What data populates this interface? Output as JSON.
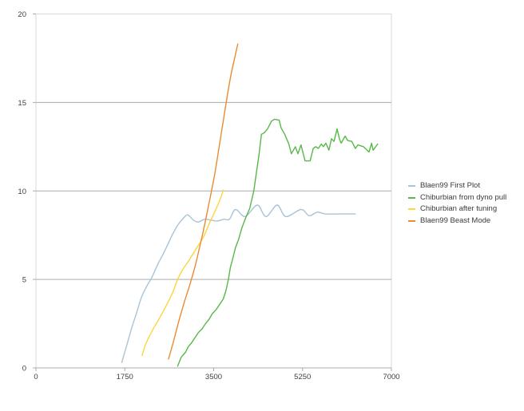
{
  "chart_data": {
    "type": "line",
    "title": "",
    "xlabel": "",
    "ylabel": "",
    "xlim": [
      0,
      7000
    ],
    "ylim": [
      0,
      20
    ],
    "x_ticks": [
      0,
      1750,
      3500,
      5250,
      7000
    ],
    "y_ticks": [
      0,
      5,
      10,
      15,
      20
    ],
    "grid": "horizontal gridlines at 5, 10, 15",
    "legend_position": "right",
    "series": [
      {
        "name": "Blaen99 First Plot",
        "color": "#aac3d6",
        "smooth": true,
        "points": [
          [
            1690,
            0.3
          ],
          [
            1780,
            1.2
          ],
          [
            1880,
            2.2
          ],
          [
            1980,
            3.1
          ],
          [
            2080,
            4.0
          ],
          [
            2180,
            4.6
          ],
          [
            2280,
            5.1
          ],
          [
            2390,
            5.8
          ],
          [
            2500,
            6.4
          ],
          [
            2600,
            7.0
          ],
          [
            2700,
            7.6
          ],
          [
            2800,
            8.1
          ],
          [
            2900,
            8.45
          ],
          [
            2990,
            8.65
          ],
          [
            3100,
            8.35
          ],
          [
            3200,
            8.25
          ],
          [
            3320,
            8.4
          ],
          [
            3450,
            8.35
          ],
          [
            3570,
            8.3
          ],
          [
            3700,
            8.4
          ],
          [
            3810,
            8.4
          ],
          [
            3930,
            8.95
          ],
          [
            4120,
            8.55
          ],
          [
            4360,
            9.2
          ],
          [
            4530,
            8.55
          ],
          [
            4750,
            9.2
          ],
          [
            4920,
            8.55
          ],
          [
            5220,
            8.95
          ],
          [
            5380,
            8.6
          ],
          [
            5540,
            8.8
          ],
          [
            5700,
            8.7
          ],
          [
            5950,
            8.7
          ],
          [
            6290,
            8.7
          ]
        ]
      },
      {
        "name": "Chiburbian from dyno pull",
        "color": "#58b848",
        "smooth": false,
        "points": [
          [
            2790,
            0.1
          ],
          [
            2860,
            0.6
          ],
          [
            2950,
            0.9
          ],
          [
            3000,
            1.2
          ],
          [
            3060,
            1.4
          ],
          [
            3130,
            1.7
          ],
          [
            3200,
            2.0
          ],
          [
            3270,
            2.2
          ],
          [
            3340,
            2.5
          ],
          [
            3410,
            2.75
          ],
          [
            3470,
            3.05
          ],
          [
            3550,
            3.3
          ],
          [
            3620,
            3.6
          ],
          [
            3690,
            3.9
          ],
          [
            3740,
            4.35
          ],
          [
            3790,
            5.0
          ],
          [
            3830,
            5.7
          ],
          [
            3870,
            6.1
          ],
          [
            3930,
            6.8
          ],
          [
            3990,
            7.25
          ],
          [
            4060,
            7.95
          ],
          [
            4140,
            8.55
          ],
          [
            4210,
            9.0
          ],
          [
            4290,
            10.0
          ],
          [
            4340,
            11.0
          ],
          [
            4390,
            12.0
          ],
          [
            4440,
            13.2
          ],
          [
            4500,
            13.3
          ],
          [
            4560,
            13.5
          ],
          [
            4640,
            13.95
          ],
          [
            4700,
            14.05
          ],
          [
            4790,
            14.0
          ],
          [
            4830,
            13.55
          ],
          [
            4900,
            13.2
          ],
          [
            4980,
            12.65
          ],
          [
            5030,
            12.1
          ],
          [
            5110,
            12.5
          ],
          [
            5160,
            12.1
          ],
          [
            5220,
            12.6
          ],
          [
            5300,
            11.7
          ],
          [
            5400,
            11.7
          ],
          [
            5460,
            12.4
          ],
          [
            5510,
            12.5
          ],
          [
            5560,
            12.4
          ],
          [
            5620,
            12.65
          ],
          [
            5660,
            12.5
          ],
          [
            5710,
            12.7
          ],
          [
            5770,
            12.3
          ],
          [
            5820,
            12.95
          ],
          [
            5870,
            12.8
          ],
          [
            5930,
            13.5
          ],
          [
            5980,
            12.9
          ],
          [
            6010,
            12.7
          ],
          [
            6090,
            13.1
          ],
          [
            6140,
            12.85
          ],
          [
            6220,
            12.8
          ],
          [
            6290,
            12.4
          ],
          [
            6340,
            12.6
          ],
          [
            6450,
            12.5
          ],
          [
            6560,
            12.2
          ],
          [
            6610,
            12.7
          ],
          [
            6640,
            12.3
          ],
          [
            6730,
            12.65
          ]
        ]
      },
      {
        "name": "Chiburbian after tuning",
        "color": "#fdd53c",
        "smooth": true,
        "points": [
          [
            2090,
            0.7
          ],
          [
            2170,
            1.4
          ],
          [
            2290,
            2.1
          ],
          [
            2430,
            2.8
          ],
          [
            2580,
            3.6
          ],
          [
            2700,
            4.3
          ],
          [
            2790,
            5.0
          ],
          [
            2900,
            5.6
          ],
          [
            3020,
            6.1
          ],
          [
            3170,
            6.8
          ],
          [
            3300,
            7.4
          ],
          [
            3420,
            8.2
          ],
          [
            3550,
            9.0
          ],
          [
            3650,
            9.7
          ],
          [
            3690,
            10.05
          ]
        ]
      },
      {
        "name": "Blaen99 Beast Mode",
        "color": "#eb8a34",
        "smooth": true,
        "points": [
          [
            2610,
            0.5
          ],
          [
            2700,
            1.4
          ],
          [
            2810,
            2.6
          ],
          [
            2920,
            3.7
          ],
          [
            3030,
            4.7
          ],
          [
            3130,
            5.7
          ],
          [
            3230,
            6.9
          ],
          [
            3330,
            8.2
          ],
          [
            3430,
            9.6
          ],
          [
            3530,
            11.1
          ],
          [
            3630,
            12.9
          ],
          [
            3730,
            14.7
          ],
          [
            3830,
            16.4
          ],
          [
            3920,
            17.6
          ],
          [
            3975,
            18.3
          ]
        ]
      }
    ]
  },
  "colors": {
    "background": "#ffffff",
    "frame": "#d9d9d9",
    "gridline": "#ababab",
    "axis": "#ababab",
    "tick_label": "#3f3f3f",
    "legend_text": "#3a3a3a"
  }
}
